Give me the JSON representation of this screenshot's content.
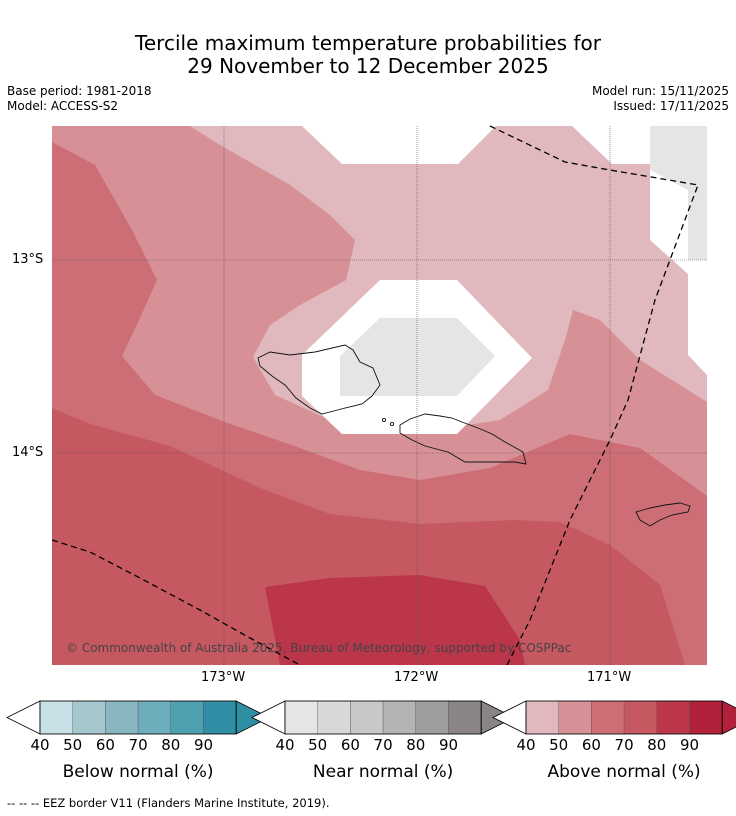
{
  "title_line1": "Tercile maximum temperature probabilities for",
  "title_line2": "29 November to 12 December 2025",
  "base_period": "Base period: 1981-2018",
  "model": "Model: ACCESS-S2",
  "model_run": "Model run: 15/11/2025",
  "issued": "Issued: 17/11/2025",
  "copyright": "© Commonwealth of Australia 2025, Bureau of Meteorology, supported by COSPPac",
  "lat_labels": [
    "13°S",
    "14°S"
  ],
  "lon_labels": [
    "173°W",
    "172°W",
    "171°W"
  ],
  "colorbars": [
    {
      "label": "Below normal (%)",
      "ticks": [
        "40",
        "50",
        "60",
        "70",
        "80",
        "90"
      ],
      "colors": [
        "#c7e0e6",
        "#a6c7cd",
        "#88b7c2",
        "#6eaebc",
        "#4ea1b1",
        "#2f8ea3"
      ]
    },
    {
      "label": "Near normal (%)",
      "ticks": [
        "40",
        "50",
        "60",
        "70",
        "80",
        "90"
      ],
      "colors": [
        "#e5e5e5",
        "#d8d8d8",
        "#c8c8c8",
        "#b4b4b4",
        "#9e9e9e",
        "#8a8484"
      ]
    },
    {
      "label": "Above normal (%)",
      "ticks": [
        "40",
        "50",
        "60",
        "70",
        "80",
        "90"
      ],
      "colors": [
        "#e0b8bd",
        "#d69096",
        "#cd6e77",
        "#c65862",
        "#bb364a",
        "#b2203c"
      ]
    }
  ],
  "footer": "--  --  -- EEZ border V11 (Flanders Marine Institute, 2019)."
}
